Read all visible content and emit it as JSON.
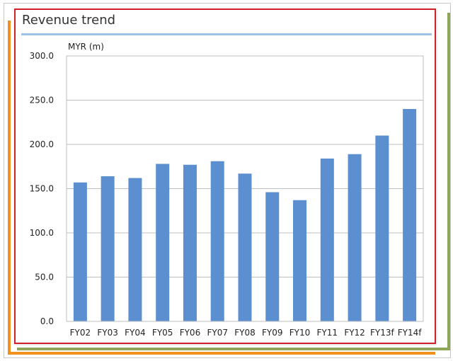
{
  "header": {
    "title": "Revenue trend"
  },
  "chart_data": {
    "type": "bar",
    "title": "Revenue trend",
    "ylabel": "MYR (m)",
    "xlabel": "",
    "categories": [
      "FY02",
      "FY03",
      "FY04",
      "FY05",
      "FY06",
      "FY07",
      "FY08",
      "FY09",
      "FY10",
      "FY11",
      "FY12",
      "FY13f",
      "FY14f"
    ],
    "values": [
      157,
      164,
      162,
      178,
      177,
      181,
      167,
      146,
      137,
      184,
      189,
      210,
      240
    ],
    "ylim": [
      0,
      300
    ],
    "yticks": [
      "0.0",
      "50.0",
      "100.0",
      "150.0",
      "200.0",
      "250.0",
      "300.0"
    ],
    "grid": true,
    "bar_color": "#5b8fd0",
    "legend": "none"
  },
  "colors": {
    "frame": "#d0202a",
    "title_rule": "#9dc3e6",
    "grid": "#bfbfbf"
  }
}
